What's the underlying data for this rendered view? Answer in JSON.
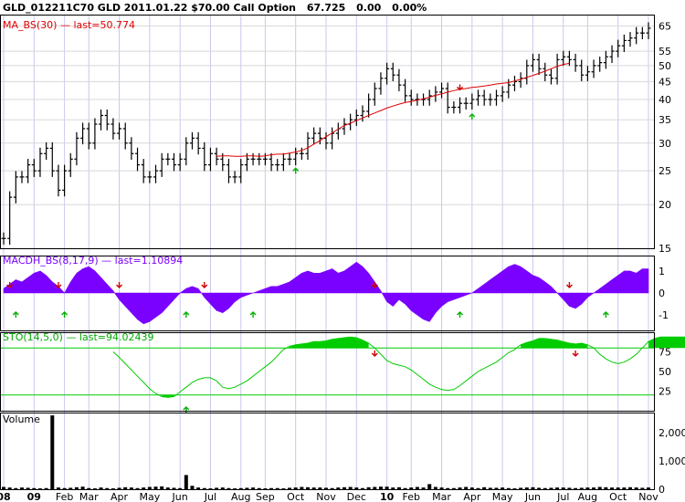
{
  "header": {
    "symbol": "GLD_012211C70 GLD 2011.01.22 $70.00 Call Option",
    "last": "67.725",
    "change": "0.00",
    "change_pct": "0.00%"
  },
  "colors": {
    "price_bar": "#000000",
    "ma": "#e00000",
    "macdh": "#7a00ff",
    "sto": "#00cc00",
    "volume": "#000000",
    "grid_v": "#c8c8f0",
    "grid_h": "#d8d8d8",
    "buy_arrow": "#00b000",
    "sell_arrow": "#d00000"
  },
  "chart_data": [
    {
      "type": "ohlc",
      "legend": {
        "name": "MA_BS(30)",
        "last": "last=50.774"
      },
      "y_scale": "log",
      "ylim": [
        15,
        70
      ],
      "yticks": [
        "65",
        "55",
        "50",
        "45",
        "40",
        "35",
        "30",
        "25",
        "20",
        "15"
      ],
      "x_labels": [
        "08",
        "09",
        "Feb",
        "Mar",
        "Apr",
        "May",
        "Jun",
        "Jul",
        "Aug",
        "Sep",
        "Oct",
        "Nov",
        "Dec",
        "10",
        "Feb",
        "Mar",
        "Apr",
        "May",
        "Jun",
        "Jul",
        "Aug",
        "Oct",
        "Nov"
      ],
      "closes": [
        16,
        21,
        24,
        24,
        26,
        25,
        28,
        29,
        25,
        22,
        25,
        27,
        31,
        33,
        30,
        34,
        36,
        34,
        32,
        33,
        30,
        28,
        26,
        24,
        24,
        25,
        27,
        27,
        26,
        27,
        30,
        31,
        29,
        26,
        28,
        27,
        26,
        24,
        24,
        26,
        27,
        27,
        27,
        27,
        26,
        26,
        27,
        27,
        28,
        28,
        31,
        32,
        31,
        30,
        32,
        33,
        34,
        35,
        36,
        37,
        40,
        43,
        46,
        49,
        47,
        44,
        41,
        40,
        40,
        40,
        41,
        42,
        43,
        38,
        38,
        39,
        39,
        40,
        41,
        40,
        40,
        41,
        42,
        44,
        45,
        46,
        50,
        52,
        49,
        47,
        46,
        52,
        53,
        52,
        50,
        47,
        48,
        50,
        51,
        53,
        55,
        57,
        59,
        60,
        62,
        62,
        64
      ],
      "ma": {
        "start_index": 35,
        "values": [
          27.5,
          27.6,
          27.6,
          27.5,
          27.5,
          27.6,
          27.6,
          27.5,
          27.6,
          27.8,
          27.9,
          27.9,
          28.1,
          28.3,
          28.6,
          29.1,
          29.8,
          30.5,
          31.3,
          32.1,
          32.9,
          33.7,
          34.2,
          34.8,
          35.4,
          36.0,
          36.6,
          37.2,
          37.8,
          38.3,
          38.8,
          39.2,
          39.5,
          39.8,
          40.2,
          40.6,
          41.1,
          41.5,
          42.0,
          42.4,
          42.8,
          43.0,
          43.3,
          43.5,
          43.7,
          44.0,
          44.3,
          44.5,
          44.7,
          45.2,
          45.7,
          46.3,
          46.9,
          47.5,
          48.2,
          49.0,
          49.8,
          50.4,
          50.774
        ]
      },
      "signals": [
        {
          "i": 48,
          "dir": "buy"
        },
        {
          "i": 75,
          "dir": "sell"
        },
        {
          "i": 77,
          "dir": "buy"
        }
      ]
    },
    {
      "type": "area",
      "legend": {
        "name": "MACDH_BS(8,17,9)",
        "last": "last=1.10894"
      },
      "ylim": [
        -1.7,
        1.7
      ],
      "yticks": [
        "1",
        "0",
        "-1"
      ],
      "values": [
        0.2,
        0.4,
        0.6,
        0.5,
        0.7,
        0.9,
        1.0,
        0.8,
        0.5,
        0.3,
        0.0,
        0.5,
        0.9,
        1.1,
        1.2,
        1.0,
        0.7,
        0.4,
        0.1,
        -0.3,
        -0.6,
        -0.9,
        -1.2,
        -1.4,
        -1.3,
        -1.1,
        -0.9,
        -0.6,
        -0.3,
        0.0,
        0.2,
        0.3,
        0.2,
        -0.2,
        -0.5,
        -0.8,
        -0.9,
        -0.7,
        -0.4,
        -0.2,
        -0.1,
        0.0,
        0.1,
        0.2,
        0.3,
        0.3,
        0.4,
        0.5,
        0.7,
        0.9,
        1.0,
        0.9,
        0.9,
        1.0,
        1.1,
        0.9,
        1.0,
        1.2,
        1.4,
        1.2,
        0.9,
        0.5,
        0.1,
        -0.4,
        -0.6,
        -0.3,
        -0.5,
        -0.8,
        -1.0,
        -1.2,
        -1.3,
        -0.9,
        -0.6,
        -0.4,
        -0.3,
        -0.2,
        -0.1,
        0.0,
        0.2,
        0.4,
        0.6,
        0.8,
        1.0,
        1.2,
        1.3,
        1.2,
        1.0,
        0.8,
        0.7,
        0.5,
        0.3,
        0.0,
        -0.3,
        -0.6,
        -0.7,
        -0.5,
        -0.2,
        0.0,
        0.2,
        0.4,
        0.6,
        0.8,
        1.0,
        1.0,
        0.9,
        1.1,
        1.1
      ],
      "signals": [
        {
          "i": 1,
          "dir": "sell"
        },
        {
          "i": 2,
          "dir": "buy"
        },
        {
          "i": 9,
          "dir": "sell"
        },
        {
          "i": 10,
          "dir": "buy"
        },
        {
          "i": 19,
          "dir": "sell"
        },
        {
          "i": 30,
          "dir": "buy"
        },
        {
          "i": 33,
          "dir": "sell"
        },
        {
          "i": 41,
          "dir": "buy"
        },
        {
          "i": 61,
          "dir": "sell"
        },
        {
          "i": 75,
          "dir": "buy"
        },
        {
          "i": 93,
          "dir": "sell"
        },
        {
          "i": 99,
          "dir": "buy"
        }
      ]
    },
    {
      "type": "line",
      "legend": {
        "name": "STO(14,5,0)",
        "last": "last=94.02439"
      },
      "ylim": [
        0,
        100
      ],
      "yticks": [
        "75",
        "50",
        "25"
      ],
      "bands": [
        80,
        20
      ],
      "start_index": 18,
      "values": [
        75,
        68,
        60,
        52,
        44,
        36,
        28,
        22,
        18,
        17,
        18,
        24,
        30,
        36,
        40,
        42,
        42,
        38,
        30,
        28,
        30,
        34,
        38,
        44,
        50,
        56,
        62,
        70,
        78,
        82,
        84,
        85,
        86,
        88,
        88,
        89,
        91,
        92,
        93,
        94,
        93,
        90,
        86,
        80,
        72,
        64,
        60,
        58,
        56,
        52,
        46,
        40,
        34,
        30,
        27,
        26,
        27,
        32,
        38,
        44,
        50,
        54,
        58,
        62,
        68,
        74,
        78,
        84,
        87,
        89,
        92,
        92,
        91,
        90,
        88,
        86,
        85,
        86,
        84,
        80,
        72,
        66,
        62,
        60,
        62,
        66,
        72,
        80,
        88,
        92,
        94,
        94,
        94,
        94,
        94,
        94,
        94.02439
      ],
      "signals": [
        {
          "i": 30,
          "dir": "buy"
        },
        {
          "i": 61,
          "dir": "sell"
        },
        {
          "i": 94,
          "dir": "sell"
        }
      ]
    },
    {
      "type": "bar",
      "legend": {
        "name": "Volume"
      },
      "ylim": [
        0,
        2700
      ],
      "yticks": [
        "2,000",
        "1,000",
        "0"
      ],
      "values": [
        80,
        60,
        40,
        60,
        50,
        40,
        30,
        40,
        2600,
        60,
        40,
        50,
        70,
        90,
        40,
        30,
        60,
        40,
        30,
        50,
        70,
        60,
        40,
        60,
        80,
        90,
        100,
        60,
        50,
        40,
        500,
        120,
        60,
        40,
        30,
        50,
        60,
        40,
        30,
        40,
        50,
        60,
        40,
        30,
        40,
        40,
        30,
        50,
        60,
        80,
        70,
        60,
        60,
        50,
        40,
        60,
        70,
        80,
        60,
        40,
        70,
        80,
        90,
        90,
        60,
        70,
        40,
        60,
        80,
        60,
        180,
        80,
        60,
        40,
        40,
        60,
        80,
        60,
        40,
        70,
        50,
        50,
        60,
        40,
        30,
        50,
        60,
        70,
        50,
        40,
        50,
        60,
        60,
        50,
        40,
        50,
        60,
        60,
        80,
        70,
        60,
        60,
        60,
        70,
        60,
        50,
        60
      ]
    }
  ]
}
